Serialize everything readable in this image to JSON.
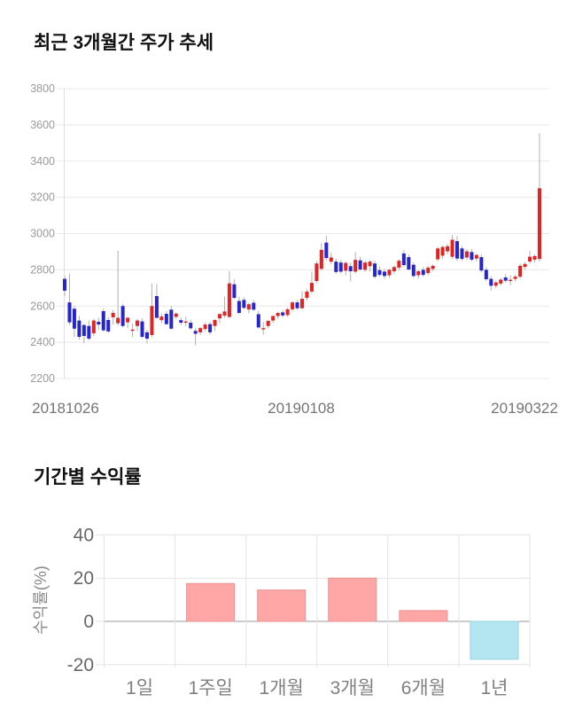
{
  "price_chart": {
    "title": "최근 3개월간 주가 추세"
  },
  "returns_chart": {
    "title": "기간별 수익률"
  },
  "chart_data": [
    {
      "type": "candlestick",
      "title": "최근 3개월간 주가 추세",
      "ylim": [
        2200,
        3800
      ],
      "y_ticks": [
        3800,
        3600,
        3400,
        3200,
        3000,
        2800,
        2600,
        2400,
        2200
      ],
      "x_labels": [
        "20181026",
        "20190108",
        "20190322"
      ],
      "grid": true,
      "colors": {
        "up": "#e32222",
        "down": "#2626cc",
        "wick": "#b0b0b0",
        "grid": "#e8e8e8",
        "axis_line": "#dedede",
        "y_tick_text": "#9a9a9a",
        "x_tick_text": "#757575"
      },
      "candles_ohlc": [
        [
          2750,
          2765,
          2655,
          2685
        ],
        [
          2620,
          2780,
          2495,
          2510
        ],
        [
          2585,
          2600,
          2430,
          2475
        ],
        [
          2520,
          2545,
          2415,
          2430
        ],
        [
          2495,
          2505,
          2395,
          2435
        ],
        [
          2490,
          2520,
          2410,
          2420
        ],
        [
          2450,
          2530,
          2435,
          2520
        ],
        [
          2513,
          2535,
          2468,
          2498
        ],
        [
          2572,
          2585,
          2458,
          2466
        ],
        [
          2523,
          2540,
          2452,
          2460
        ],
        [
          2538,
          2578,
          2498,
          2562
        ],
        [
          2505,
          2905,
          2492,
          2535
        ],
        [
          2600,
          2612,
          2482,
          2490
        ],
        [
          2510,
          2542,
          2478,
          2535
        ],
        [
          2470,
          2502,
          2428,
          2470
        ],
        [
          2490,
          2528,
          2462,
          2520
        ],
        [
          2515,
          2532,
          2422,
          2430
        ],
        [
          2455,
          2468,
          2392,
          2420
        ],
        [
          2440,
          2725,
          2428,
          2600
        ],
        [
          2655,
          2722,
          2530,
          2535
        ],
        [
          2522,
          2558,
          2505,
          2542
        ],
        [
          2557,
          2572,
          2495,
          2500
        ],
        [
          2580,
          2600,
          2470,
          2475
        ],
        [
          2540,
          2565,
          2528,
          2558
        ],
        [
          2522,
          2538,
          2495,
          2508
        ],
        [
          2515,
          2540,
          2488,
          2515
        ],
        [
          2508,
          2525,
          2470,
          2477
        ],
        [
          2463,
          2478,
          2383,
          2447
        ],
        [
          2455,
          2485,
          2440,
          2478
        ],
        [
          2473,
          2510,
          2460,
          2498
        ],
        [
          2500,
          2512,
          2442,
          2455
        ],
        [
          2490,
          2528,
          2462,
          2523
        ],
        [
          2532,
          2548,
          2505,
          2556
        ],
        [
          2547,
          2652,
          2535,
          2570
        ],
        [
          2540,
          2792,
          2532,
          2725
        ],
        [
          2720,
          2748,
          2638,
          2645
        ],
        [
          2628,
          2652,
          2555,
          2562
        ],
        [
          2634,
          2648,
          2582,
          2590
        ],
        [
          2581,
          2618,
          2560,
          2610
        ],
        [
          2618,
          2632,
          2572,
          2580
        ],
        [
          2555,
          2572,
          2475,
          2482
        ],
        [
          2475,
          2512,
          2442,
          2478
        ],
        [
          2490,
          2522,
          2478,
          2518
        ],
        [
          2520,
          2548,
          2508,
          2545
        ],
        [
          2545,
          2570,
          2530,
          2562
        ],
        [
          2565,
          2578,
          2538,
          2548
        ],
        [
          2550,
          2592,
          2540,
          2582
        ],
        [
          2582,
          2628,
          2570,
          2620
        ],
        [
          2620,
          2634,
          2580,
          2588
        ],
        [
          2588,
          2682,
          2582,
          2640
        ],
        [
          2645,
          2695,
          2630,
          2680
        ],
        [
          2680,
          2790,
          2668,
          2728
        ],
        [
          2738,
          2848,
          2726,
          2835
        ],
        [
          2805,
          2948,
          2795,
          2910
        ],
        [
          2950,
          2988,
          2852,
          2865
        ],
        [
          2845,
          2895,
          2830,
          2868
        ],
        [
          2845,
          2862,
          2778,
          2788
        ],
        [
          2840,
          2855,
          2780,
          2790
        ],
        [
          2795,
          2848,
          2772,
          2838
        ],
        [
          2820,
          2840,
          2736,
          2792
        ],
        [
          2790,
          2898,
          2780,
          2855
        ],
        [
          2852,
          2872,
          2795,
          2802
        ],
        [
          2800,
          2850,
          2788,
          2840
        ],
        [
          2820,
          2855,
          2790,
          2845
        ],
        [
          2835,
          2850,
          2752,
          2762
        ],
        [
          2798,
          2818,
          2760,
          2772
        ],
        [
          2790,
          2805,
          2750,
          2766
        ],
        [
          2770,
          2806,
          2756,
          2800
        ],
        [
          2792,
          2825,
          2778,
          2815
        ],
        [
          2812,
          2858,
          2798,
          2850
        ],
        [
          2890,
          2908,
          2818,
          2826
        ],
        [
          2870,
          2884,
          2796,
          2802
        ],
        [
          2828,
          2842,
          2756,
          2766
        ],
        [
          2770,
          2800,
          2752,
          2792
        ],
        [
          2800,
          2815,
          2760,
          2772
        ],
        [
          2782,
          2820,
          2770,
          2812
        ],
        [
          2805,
          2830,
          2792,
          2822
        ],
        [
          2858,
          2926,
          2846,
          2918
        ],
        [
          2878,
          2934,
          2860,
          2926
        ],
        [
          2902,
          2944,
          2886,
          2930
        ],
        [
          2872,
          2992,
          2860,
          2966
        ],
        [
          2958,
          2986,
          2850,
          2862
        ],
        [
          2918,
          2932,
          2850,
          2860
        ],
        [
          2868,
          2914,
          2854,
          2902
        ],
        [
          2898,
          2914,
          2846,
          2856
        ],
        [
          2862,
          2890,
          2848,
          2882
        ],
        [
          2870,
          2884,
          2786,
          2796
        ],
        [
          2800,
          2814,
          2738,
          2748
        ],
        [
          2750,
          2764,
          2686,
          2712
        ],
        [
          2712,
          2740,
          2698,
          2730
        ],
        [
          2724,
          2754,
          2712,
          2746
        ],
        [
          2758,
          2776,
          2730,
          2740
        ],
        [
          2745,
          2770,
          2716,
          2745
        ],
        [
          2750,
          2774,
          2736,
          2762
        ],
        [
          2762,
          2834,
          2750,
          2822
        ],
        [
          2816,
          2844,
          2800,
          2832
        ],
        [
          2846,
          2904,
          2834,
          2872
        ],
        [
          2856,
          2884,
          2840,
          2876
        ],
        [
          2860,
          3555,
          2845,
          3250
        ]
      ]
    },
    {
      "type": "bar",
      "title": "기간별 수익률",
      "categories": [
        "1일",
        "1주일",
        "1개월",
        "3개월",
        "6개월",
        "1년"
      ],
      "values": [
        0,
        17.5,
        14.5,
        20,
        5,
        -17.5
      ],
      "ylabel": "수익률(%)",
      "y_ticks": [
        40,
        20,
        0,
        -20
      ],
      "ylim": [
        -24,
        40
      ],
      "grid": true,
      "legend": "none",
      "colors": {
        "positive_fill": "#ffa6a6",
        "positive_border": "#ec9191",
        "negative_fill": "#b3e6f0",
        "negative_border": "#92d2e0",
        "zero_line": "#9a9a9a",
        "grid": "#e3e3e3",
        "y_tick_text": "#666666",
        "category_text": "#808080",
        "ylabel_text": "#8a8a8a"
      }
    }
  ]
}
